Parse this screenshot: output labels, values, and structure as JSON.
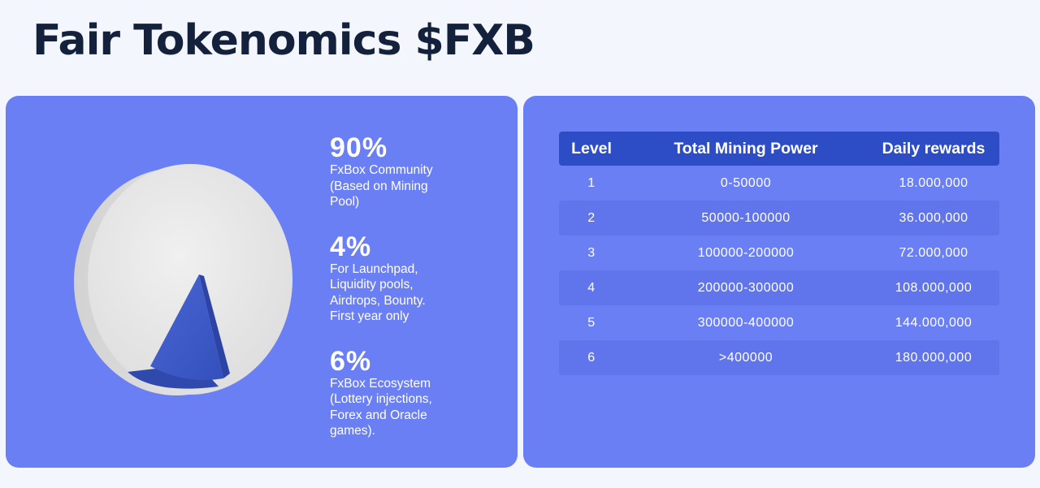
{
  "header": {
    "title": "Fair Tokenomics $FXB"
  },
  "distribution": {
    "stats": [
      {
        "percent": "90%",
        "description": "FxBox Community\n(Based on Mining\nPool)"
      },
      {
        "percent": "4%",
        "description": "For Launchpad,\nLiquidity pools,\nAirdrops, Bounty.\nFirst year only"
      },
      {
        "percent": "6%",
        "description": "FxBox Ecosystem\n(Lottery injections,\nForex and Oracle\ngames)."
      }
    ],
    "pie_colors": {
      "main": "#e6e6e6",
      "slice": "#3f5bc4"
    }
  },
  "rewards_table": {
    "headers": [
      "Level",
      "Total Mining Power",
      "Daily rewards"
    ],
    "rows": [
      [
        "1",
        "0-50000",
        "18.000,000"
      ],
      [
        "2",
        "50000-100000",
        "36.000,000"
      ],
      [
        "3",
        "100000-200000",
        "72.000,000"
      ],
      [
        "4",
        "200000-300000",
        "108.000,000"
      ],
      [
        "5",
        "300000-400000",
        "144.000,000"
      ],
      [
        "6",
        ">400000",
        "180.000,000"
      ]
    ]
  },
  "colors": {
    "page_background": "#f3f6fc",
    "card_background": "#6b7ff5",
    "table_header": "#2d4dc6",
    "title_text": "#14213d"
  }
}
